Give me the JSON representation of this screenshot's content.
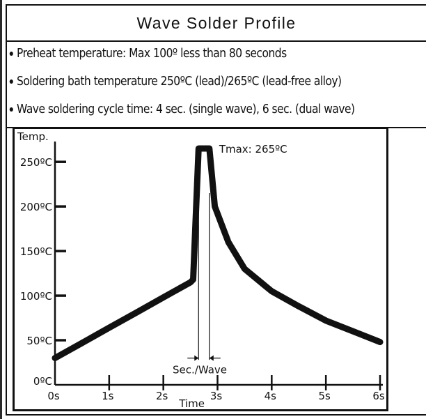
{
  "title": "Wave Solder Profile",
  "bullets": [
    "Preheat temperature: Max 100º less than 80 seconds",
    "Soldering bath temperature 250ºC (lead)/265ºC (lead-free alloy)",
    "Wave soldering cycle time: 4 sec. (single wave), 6 sec. (dual wave)"
  ],
  "chart_data": {
    "type": "line",
    "ylabel": "Temp.",
    "xlabel": "Time",
    "x_ticks": [
      "0s",
      "1s",
      "2s",
      "3s",
      "4s",
      "5s",
      "6s"
    ],
    "y_ticks": [
      "0ºC",
      "50ºC",
      "100ºC",
      "150ºC",
      "200ºC",
      "250ºC"
    ],
    "x_tick_values": [
      0,
      1,
      2,
      3,
      4,
      5,
      6
    ],
    "y_tick_values": [
      0,
      50,
      100,
      150,
      200,
      250
    ],
    "xlim": [
      0,
      6
    ],
    "ylim": [
      0,
      265
    ],
    "series": [
      {
        "x": [
          0,
          0.5,
          1,
          1.5,
          2,
          2.5,
          2.55,
          2.65,
          2.85,
          2.95,
          3.2,
          3.5,
          4.0,
          4.5,
          5.0,
          5.5,
          6.0
        ],
        "y": [
          30,
          47,
          64,
          81,
          98,
          115,
          118,
          265,
          265,
          200,
          160,
          130,
          105,
          88,
          72,
          60,
          48
        ]
      }
    ],
    "annotations": {
      "tmax_label": "Tmax: 265ºC",
      "wave_label": "Sec./Wave",
      "wave_start": 2.65,
      "wave_end": 2.85
    },
    "grid": false,
    "legend": "none"
  }
}
